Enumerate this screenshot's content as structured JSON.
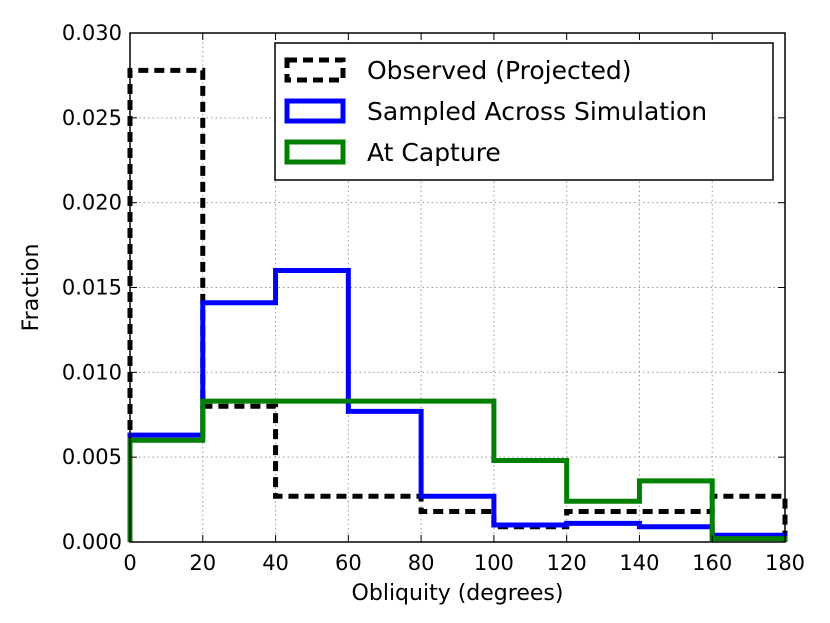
{
  "chart_data": {
    "type": "histogram",
    "title": "",
    "xlabel": "Obliquity (degrees)",
    "ylabel": "Fraction",
    "xlim": [
      0,
      180
    ],
    "ylim": [
      0,
      0.03
    ],
    "grid": true,
    "legend_position": "top-right",
    "bin_edges": [
      0,
      20,
      40,
      60,
      80,
      100,
      120,
      140,
      160,
      180
    ],
    "x_ticks": [
      "0",
      "20",
      "40",
      "60",
      "80",
      "100",
      "120",
      "140",
      "160",
      "180"
    ],
    "y_ticks": [
      "0.000",
      "0.005",
      "0.010",
      "0.015",
      "0.020",
      "0.025",
      "0.030"
    ],
    "series": [
      {
        "name": "Observed (Projected)",
        "color": "#000000",
        "style": "dashed",
        "values": [
          0.0278,
          0.008,
          0.0027,
          0.0027,
          0.0018,
          0.0009,
          0.0018,
          0.0018,
          0.0027
        ]
      },
      {
        "name": "Sampled Across Simulation",
        "color": "#0000ff",
        "style": "solid",
        "values": [
          0.0063,
          0.0141,
          0.016,
          0.0077,
          0.0027,
          0.001,
          0.0011,
          0.0009,
          0.0004
        ]
      },
      {
        "name": "At Capture",
        "color": "#008000",
        "style": "solid",
        "values": [
          0.006,
          0.0083,
          0.0083,
          0.0083,
          0.0083,
          0.0048,
          0.0024,
          0.0036,
          0.0002
        ]
      }
    ]
  }
}
